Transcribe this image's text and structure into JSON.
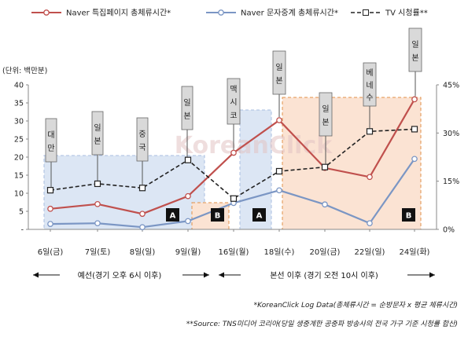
{
  "chart_data": {
    "type": "line",
    "unit_label": "(단위: 백만분)",
    "categories": [
      "6일(금)",
      "7일(토)",
      "8일(일)",
      "9일(월)",
      "16일(월)",
      "18일(수)",
      "20일(금)",
      "22일(일)",
      "24일(화)"
    ],
    "series": [
      {
        "name": "Naver 특집페이지 총체류시간*",
        "axis": "left",
        "color": "#c0504d",
        "values": [
          5.7,
          7.0,
          4.3,
          9.2,
          21.2,
          30.2,
          17.0,
          14.5,
          36.0
        ]
      },
      {
        "name": "Naver 문자중계 총체류시간*",
        "axis": "left",
        "color": "#7b96c4",
        "values": [
          1.5,
          1.7,
          0.6,
          2.3,
          7.3,
          10.8,
          6.9,
          1.7,
          19.5
        ]
      },
      {
        "name": "TV 시청률**",
        "axis": "right",
        "color": "#222222",
        "values": [
          12.2,
          14.2,
          12.9,
          21.6,
          9.6,
          18.1,
          19.4,
          30.5,
          31.2
        ]
      }
    ],
    "y_left": {
      "min": 0,
      "max": 40,
      "ticks": [
        "-",
        "5",
        "10",
        "15",
        "20",
        "25",
        "30",
        "35",
        "40"
      ]
    },
    "y_right": {
      "min": 0,
      "max": 45,
      "ticks": [
        "0%",
        "15%",
        "30%",
        "45%"
      ]
    },
    "callouts": [
      {
        "label": "대만",
        "category": 0
      },
      {
        "label": "일본",
        "category": 1
      },
      {
        "label": "중국",
        "category": 2
      },
      {
        "label": "일본",
        "category": 3
      },
      {
        "label": "맥시코",
        "category": 4
      },
      {
        "label": "일본",
        "category": 5
      },
      {
        "label": "일본",
        "category": 6
      },
      {
        "label": "베네수",
        "category": 7
      },
      {
        "label": "일본",
        "category": 8
      }
    ],
    "region_badges": [
      {
        "label": "A",
        "category": 3
      },
      {
        "label": "B",
        "category": 4
      },
      {
        "label": "A",
        "category": 5
      },
      {
        "label": "B",
        "category": 8
      }
    ],
    "regions": [
      {
        "type": "A",
        "from": 0,
        "to": 3,
        "fill": "#dce6f4"
      },
      {
        "type": "B",
        "from": 3,
        "to": 4,
        "fill": "#fbe3d3"
      },
      {
        "type": "A",
        "from": 4,
        "to": 5,
        "fill": "#dce6f4"
      },
      {
        "type": "B",
        "from": 5,
        "to": 8,
        "fill": "#fbe3d3"
      }
    ],
    "phases": [
      {
        "label": "예선(경기 오후 6시 이후)"
      },
      {
        "label": "본선 이후 (경기 오전 10시 이후)"
      }
    ],
    "watermark": "KoreanClick"
  },
  "notes": [
    "*KoreanClick Log Data(총체류시간 = 순방문자 x 평균 체류시간)",
    "**Source: TNS미디어 코리아(당일 생중계한 공중파 방송사의 전국 가구 기준 시청률 합산)"
  ]
}
